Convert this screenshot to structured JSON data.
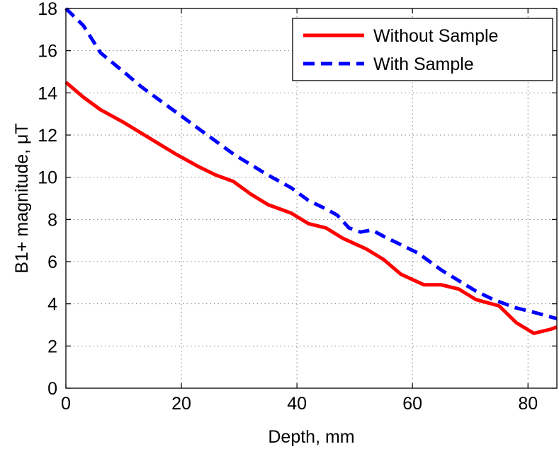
{
  "chart_data": {
    "type": "line",
    "xlabel": "Depth, mm",
    "ylabel": "B1+ magnitude, μT",
    "xlim": [
      0,
      85
    ],
    "ylim": [
      0,
      18
    ],
    "xticks": [
      0,
      20,
      40,
      60,
      80
    ],
    "yticks": [
      0,
      2,
      4,
      6,
      8,
      10,
      12,
      14,
      16,
      18
    ],
    "grid": true,
    "legend_position": "top-right",
    "series": [
      {
        "name": "Without Sample",
        "color": "#ff0000",
        "style": "solid",
        "x": [
          0,
          3,
          6,
          10,
          13,
          16,
          19,
          23,
          26,
          29,
          32,
          35,
          39,
          42,
          45,
          48,
          52,
          55,
          58,
          62,
          65,
          68,
          71,
          75,
          78,
          81,
          84,
          85
        ],
        "y": [
          14.5,
          13.8,
          13.2,
          12.6,
          12.1,
          11.6,
          11.1,
          10.5,
          10.1,
          9.8,
          9.2,
          8.7,
          8.3,
          7.8,
          7.6,
          7.1,
          6.6,
          6.1,
          5.4,
          4.9,
          4.9,
          4.7,
          4.2,
          3.9,
          3.1,
          2.6,
          2.8,
          2.9
        ]
      },
      {
        "name": "With Sample",
        "color": "#0000ff",
        "style": "dashed",
        "x": [
          0,
          3,
          6,
          10,
          13,
          16,
          19,
          23,
          26,
          29,
          32,
          35,
          39,
          42,
          45,
          47,
          49,
          51,
          53,
          55,
          58,
          61,
          65,
          68,
          71,
          74,
          78,
          81,
          85
        ],
        "y": [
          18.0,
          17.2,
          15.9,
          15.0,
          14.3,
          13.7,
          13.1,
          12.3,
          11.7,
          11.1,
          10.6,
          10.1,
          9.5,
          8.9,
          8.5,
          8.2,
          7.6,
          7.4,
          7.5,
          7.2,
          6.8,
          6.4,
          5.6,
          5.1,
          4.6,
          4.2,
          3.8,
          3.6,
          3.3
        ]
      }
    ]
  }
}
